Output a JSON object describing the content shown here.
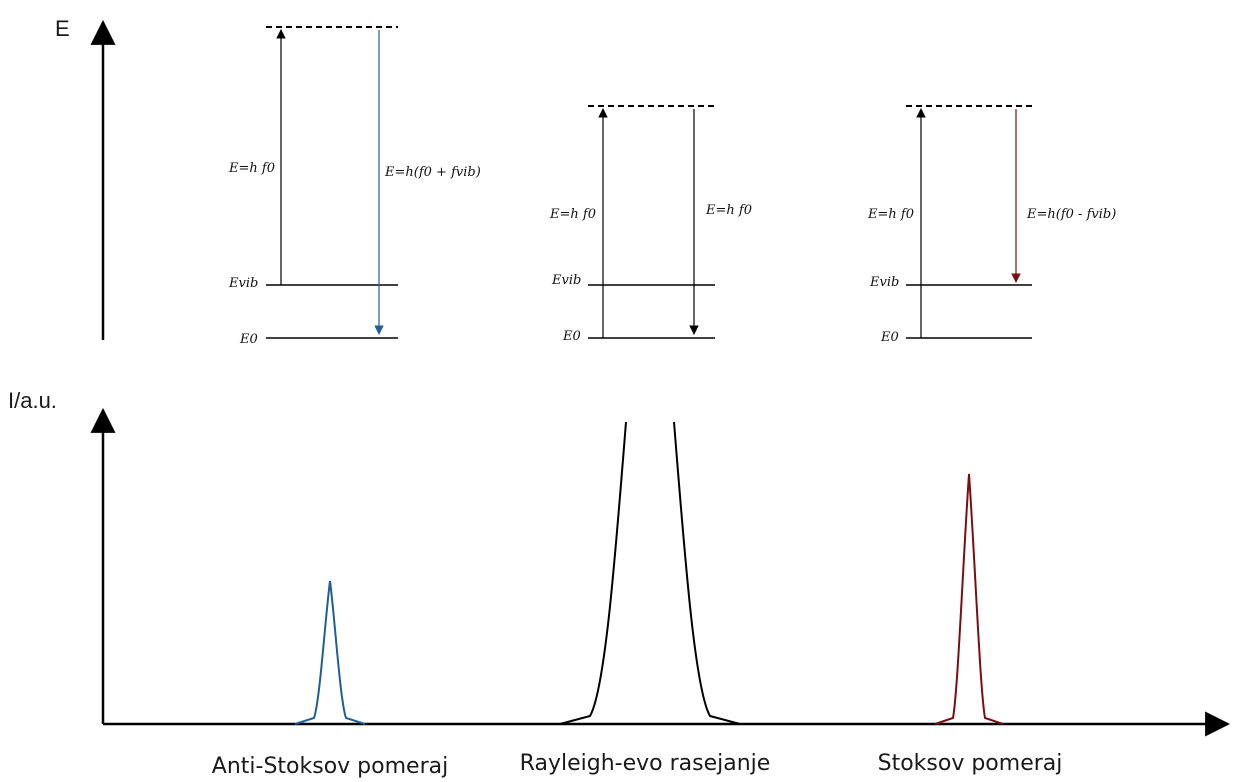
{
  "axes": {
    "energy_label": "E",
    "intensity_label": "I/a.u."
  },
  "colors": {
    "anti_stokes": "#1f5f96",
    "rayleigh": "#000000",
    "stokes": "#7a0f12",
    "axis": "#000000"
  },
  "panels": [
    {
      "id": "anti-stokes",
      "level_E0": "E0",
      "level_Evib": "Evib",
      "excitation_label": "E=h f0",
      "emission_label": "E=h(f0 + fvib)"
    },
    {
      "id": "rayleigh",
      "level_E0": "E0",
      "level_Evib": "Evib",
      "excitation_label": "E=h f0",
      "emission_label": "E=h f0"
    },
    {
      "id": "stokes",
      "level_E0": "E0",
      "level_Evib": "Evib",
      "excitation_label": "E=h f0",
      "emission_label": "E=h(f0 - fvib)"
    }
  ],
  "peaks": [
    {
      "name": "Anti-Stoksov pomeraj",
      "relative_height": 0.48
    },
    {
      "name": "Rayleigh-evo rasejanje",
      "relative_height": 1.0
    },
    {
      "name": "Stoksov pomeraj",
      "relative_height": 0.69
    }
  ]
}
